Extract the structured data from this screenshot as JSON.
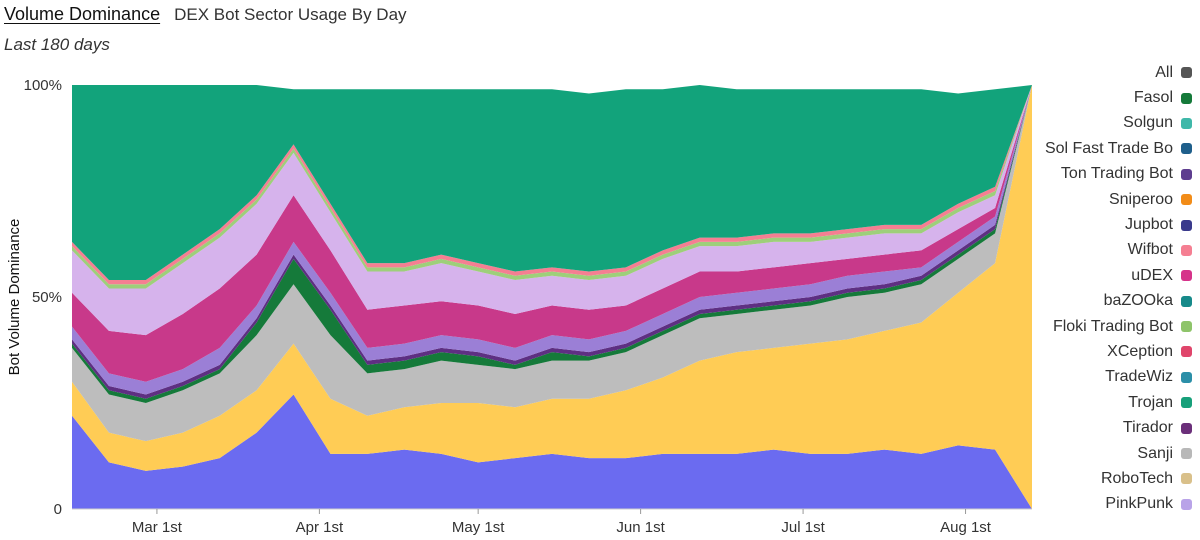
{
  "header": {
    "title": "Volume Dominance",
    "subtitle": "DEX Bot Sector Usage By Day",
    "period": "Last 180 days"
  },
  "chart_data": {
    "type": "area",
    "stacked": true,
    "normalized": true,
    "title": "Volume Dominance",
    "subtitle": "DEX Bot Sector Usage By Day",
    "ylabel": "Bot Volume Dominance",
    "ylim": [
      0,
      100
    ],
    "y_ticks": [
      "0",
      "50%",
      "100%"
    ],
    "x_ticks": [
      "Mar 1st",
      "Apr 1st",
      "May 1st",
      "Jun 1st",
      "Jul 1st",
      "Aug 1st"
    ],
    "x": [
      "Feb 13",
      "Feb 20",
      "Feb 27",
      "Mar 6",
      "Mar 13",
      "Mar 20",
      "Mar 27",
      "Apr 3",
      "Apr 10",
      "Apr 17",
      "Apr 24",
      "May 1",
      "May 8",
      "May 15",
      "May 22",
      "May 29",
      "Jun 5",
      "Jun 12",
      "Jun 19",
      "Jun 26",
      "Jul 3",
      "Jul 10",
      "Jul 17",
      "Jul 24",
      "Jul 31",
      "Aug 7",
      "Aug 10"
    ],
    "legend_position": "right",
    "series": [
      {
        "name": "PinkPunk",
        "color": "#6b6bf0",
        "values": [
          22,
          11,
          9,
          10,
          12,
          18,
          27,
          13,
          13,
          14,
          13,
          11,
          12,
          13,
          12,
          12,
          13,
          13,
          13,
          14,
          13,
          13,
          14,
          13,
          15,
          14,
          0
        ]
      },
      {
        "name": "Sanji",
        "color": "#ffcc55",
        "values": [
          8,
          7,
          7,
          8,
          10,
          10,
          12,
          13,
          9,
          10,
          12,
          14,
          12,
          13,
          14,
          16,
          18,
          22,
          24,
          24,
          26,
          27,
          28,
          31,
          36,
          44,
          100
        ]
      },
      {
        "name": "Trojan",
        "color": "#bdbdbd",
        "values": [
          8,
          9,
          9,
          10,
          10,
          13,
          14,
          15,
          10,
          9,
          10,
          9,
          9,
          9,
          9,
          9,
          10,
          10,
          9,
          9,
          9,
          10,
          9,
          9,
          8,
          7,
          0
        ]
      },
      {
        "name": "Fasol",
        "color": "#157a3a",
        "values": [
          1,
          1,
          1,
          1,
          1,
          3,
          6,
          6,
          2,
          2,
          2,
          2,
          1,
          2,
          1,
          1,
          1,
          1,
          1,
          1,
          1,
          1,
          1,
          1,
          1,
          1,
          0
        ]
      },
      {
        "name": "Tirador",
        "color": "#5e2f82",
        "values": [
          1,
          1,
          1,
          1,
          1,
          1,
          1,
          1,
          1,
          1,
          1,
          1,
          1,
          1,
          1,
          1,
          1,
          1,
          1,
          1,
          1,
          1,
          1,
          1,
          1,
          1,
          0
        ]
      },
      {
        "name": "TradeWiz",
        "color": "#9b7fd6",
        "values": [
          3,
          3,
          3,
          3,
          4,
          3,
          3,
          3,
          3,
          3,
          3,
          3,
          3,
          3,
          3,
          3,
          3,
          3,
          3,
          3,
          3,
          3,
          3,
          2,
          2,
          2,
          0
        ]
      },
      {
        "name": "XCeption",
        "color": "#c8398a",
        "values": [
          8,
          10,
          11,
          13,
          14,
          12,
          11,
          10,
          9,
          9,
          8,
          8,
          8,
          7,
          7,
          6,
          6,
          6,
          5,
          5,
          5,
          4,
          4,
          4,
          3,
          2,
          0
        ]
      },
      {
        "name": "uDEX",
        "color": "#d6b3ec",
        "values": [
          10,
          10,
          11,
          12,
          12,
          12,
          10,
          9,
          9,
          8,
          9,
          8,
          8,
          7,
          7,
          7,
          7,
          6,
          6,
          6,
          5,
          5,
          5,
          4,
          4,
          3,
          0
        ]
      },
      {
        "name": "Floki Trading Bot",
        "color": "#9ecf7a",
        "values": [
          1,
          1,
          1,
          1,
          1,
          1,
          1,
          1,
          1,
          1,
          1,
          1,
          1,
          1,
          1,
          1,
          1,
          1,
          1,
          1,
          1,
          1,
          1,
          1,
          1,
          1,
          0
        ]
      },
      {
        "name": "Wifbot",
        "color": "#f57f92",
        "values": [
          1,
          1,
          1,
          1,
          1,
          1,
          1,
          1,
          1,
          1,
          1,
          1,
          1,
          1,
          1,
          1,
          1,
          1,
          1,
          1,
          1,
          1,
          1,
          1,
          1,
          1,
          0
        ]
      },
      {
        "name": "Solgun",
        "color": "#12a37b",
        "values": [
          37,
          46,
          46,
          40,
          34,
          26,
          13,
          27,
          41,
          41,
          39,
          41,
          43,
          42,
          42,
          42,
          38,
          36,
          35,
          34,
          34,
          33,
          32,
          32,
          26,
          23,
          0
        ]
      }
    ],
    "legend_entries": [
      {
        "name": "All",
        "color": "#555555"
      },
      {
        "name": "Fasol",
        "color": "#157a3a"
      },
      {
        "name": "Solgun",
        "color": "#3fb8a9"
      },
      {
        "name": "Sol Fast Trade Bo",
        "color": "#1f5f8b"
      },
      {
        "name": "Ton Trading Bot",
        "color": "#5e3d8f"
      },
      {
        "name": "Sniperoo",
        "color": "#f28c18"
      },
      {
        "name": "Jupbot",
        "color": "#3a3a8c"
      },
      {
        "name": "Wifbot",
        "color": "#f57f92"
      },
      {
        "name": "uDEX",
        "color": "#d6338a"
      },
      {
        "name": "baZOOka",
        "color": "#178a8a"
      },
      {
        "name": "Floki Trading Bot",
        "color": "#8ec46a"
      },
      {
        "name": "XCeption",
        "color": "#e0456b"
      },
      {
        "name": "TradeWiz",
        "color": "#2b8fa8"
      },
      {
        "name": "Trojan",
        "color": "#17a07a"
      },
      {
        "name": "Tirador",
        "color": "#6b2f7a"
      },
      {
        "name": "Sanji",
        "color": "#b8b8b8"
      },
      {
        "name": "RoboTech",
        "color": "#d9c08a"
      },
      {
        "name": "PinkPunk",
        "color": "#b9a3e8"
      }
    ]
  }
}
